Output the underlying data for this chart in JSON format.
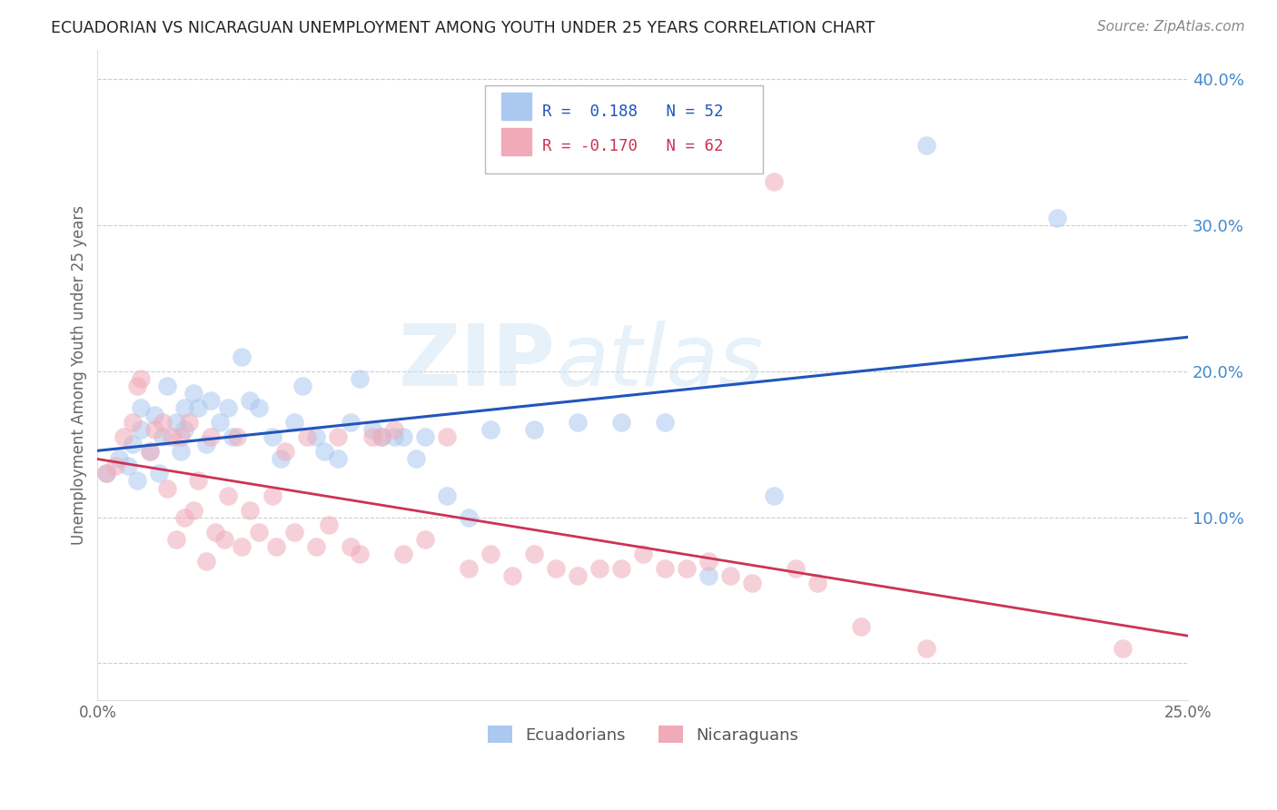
{
  "title": "ECUADORIAN VS NICARAGUAN UNEMPLOYMENT AMONG YOUTH UNDER 25 YEARS CORRELATION CHART",
  "source": "Source: ZipAtlas.com",
  "ylabel": "Unemployment Among Youth under 25 years",
  "xlim": [
    0.0,
    0.25
  ],
  "ylim": [
    -0.025,
    0.42
  ],
  "blue_scatter_x": [
    0.002,
    0.005,
    0.007,
    0.008,
    0.009,
    0.01,
    0.01,
    0.012,
    0.013,
    0.014,
    0.015,
    0.016,
    0.018,
    0.019,
    0.02,
    0.02,
    0.022,
    0.023,
    0.025,
    0.026,
    0.028,
    0.03,
    0.031,
    0.033,
    0.035,
    0.037,
    0.04,
    0.042,
    0.045,
    0.047,
    0.05,
    0.052,
    0.055,
    0.058,
    0.06,
    0.063,
    0.065,
    0.068,
    0.07,
    0.073,
    0.075,
    0.08,
    0.085,
    0.09,
    0.1,
    0.11,
    0.12,
    0.13,
    0.14,
    0.155,
    0.19,
    0.22
  ],
  "blue_scatter_y": [
    0.13,
    0.14,
    0.135,
    0.15,
    0.125,
    0.16,
    0.175,
    0.145,
    0.17,
    0.13,
    0.155,
    0.19,
    0.165,
    0.145,
    0.175,
    0.16,
    0.185,
    0.175,
    0.15,
    0.18,
    0.165,
    0.175,
    0.155,
    0.21,
    0.18,
    0.175,
    0.155,
    0.14,
    0.165,
    0.19,
    0.155,
    0.145,
    0.14,
    0.165,
    0.195,
    0.16,
    0.155,
    0.155,
    0.155,
    0.14,
    0.155,
    0.115,
    0.1,
    0.16,
    0.16,
    0.165,
    0.165,
    0.165,
    0.06,
    0.115,
    0.355,
    0.305
  ],
  "pink_scatter_x": [
    0.002,
    0.004,
    0.006,
    0.008,
    0.009,
    0.01,
    0.012,
    0.013,
    0.015,
    0.016,
    0.017,
    0.018,
    0.019,
    0.02,
    0.021,
    0.022,
    0.023,
    0.025,
    0.026,
    0.027,
    0.029,
    0.03,
    0.032,
    0.033,
    0.035,
    0.037,
    0.04,
    0.041,
    0.043,
    0.045,
    0.048,
    0.05,
    0.053,
    0.055,
    0.058,
    0.06,
    0.063,
    0.065,
    0.068,
    0.07,
    0.075,
    0.08,
    0.085,
    0.09,
    0.095,
    0.1,
    0.105,
    0.11,
    0.115,
    0.12,
    0.125,
    0.13,
    0.135,
    0.14,
    0.145,
    0.15,
    0.155,
    0.16,
    0.165,
    0.175,
    0.19,
    0.235
  ],
  "pink_scatter_y": [
    0.13,
    0.135,
    0.155,
    0.165,
    0.19,
    0.195,
    0.145,
    0.16,
    0.165,
    0.12,
    0.155,
    0.085,
    0.155,
    0.1,
    0.165,
    0.105,
    0.125,
    0.07,
    0.155,
    0.09,
    0.085,
    0.115,
    0.155,
    0.08,
    0.105,
    0.09,
    0.115,
    0.08,
    0.145,
    0.09,
    0.155,
    0.08,
    0.095,
    0.155,
    0.08,
    0.075,
    0.155,
    0.155,
    0.16,
    0.075,
    0.085,
    0.155,
    0.065,
    0.075,
    0.06,
    0.075,
    0.065,
    0.06,
    0.065,
    0.065,
    0.075,
    0.065,
    0.065,
    0.07,
    0.06,
    0.055,
    0.33,
    0.065,
    0.055,
    0.025,
    0.01,
    0.01
  ],
  "blue_color": "#aac8f0",
  "pink_color": "#f0aab8",
  "blue_line_color": "#2255bb",
  "pink_line_color": "#cc3355",
  "watermark_text": "ZIPatlas",
  "background_color": "#ffffff",
  "grid_color": "#cccccc",
  "ytick_color": "#4488cc",
  "legend_R_blue": "R =  0.188   N = 52",
  "legend_R_pink": "R = -0.170   N = 62",
  "legend_label_blue": "Ecuadorians",
  "legend_label_pink": "Nicaraguans"
}
